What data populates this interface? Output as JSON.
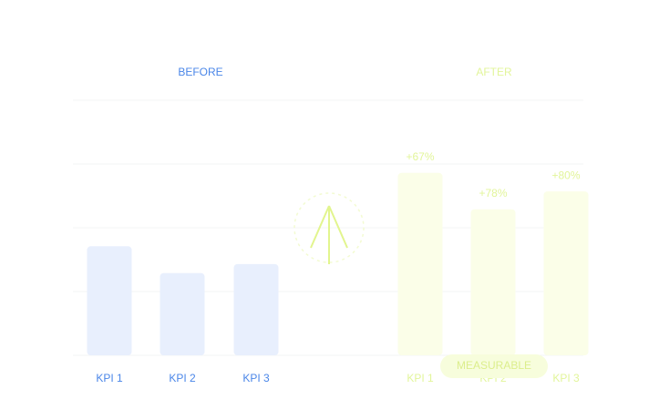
{
  "chart_data": [
    {
      "type": "bar",
      "title": "BEFORE",
      "categories": [
        "KPI 1",
        "KPI 2",
        "KPI 3"
      ],
      "values": [
        1.71,
        1.29,
        1.43
      ],
      "color": "#e8effd",
      "text_color": "#4a86e8",
      "ylim": [
        0,
        4
      ],
      "gridlines": [
        0,
        1,
        2,
        3,
        4
      ],
      "grid": true
    },
    {
      "type": "bar",
      "title": "AFTER",
      "categories": [
        "KPI 1",
        "KPI 2",
        "KPI 3"
      ],
      "values": [
        2.86,
        2.29,
        2.57
      ],
      "color": "#fbfee8",
      "text_color": "#e2f59a",
      "ylim": [
        0,
        4
      ],
      "annotations": [
        "+67%",
        "+78%",
        "+80%"
      ],
      "badge": "MEASURABLE"
    }
  ]
}
